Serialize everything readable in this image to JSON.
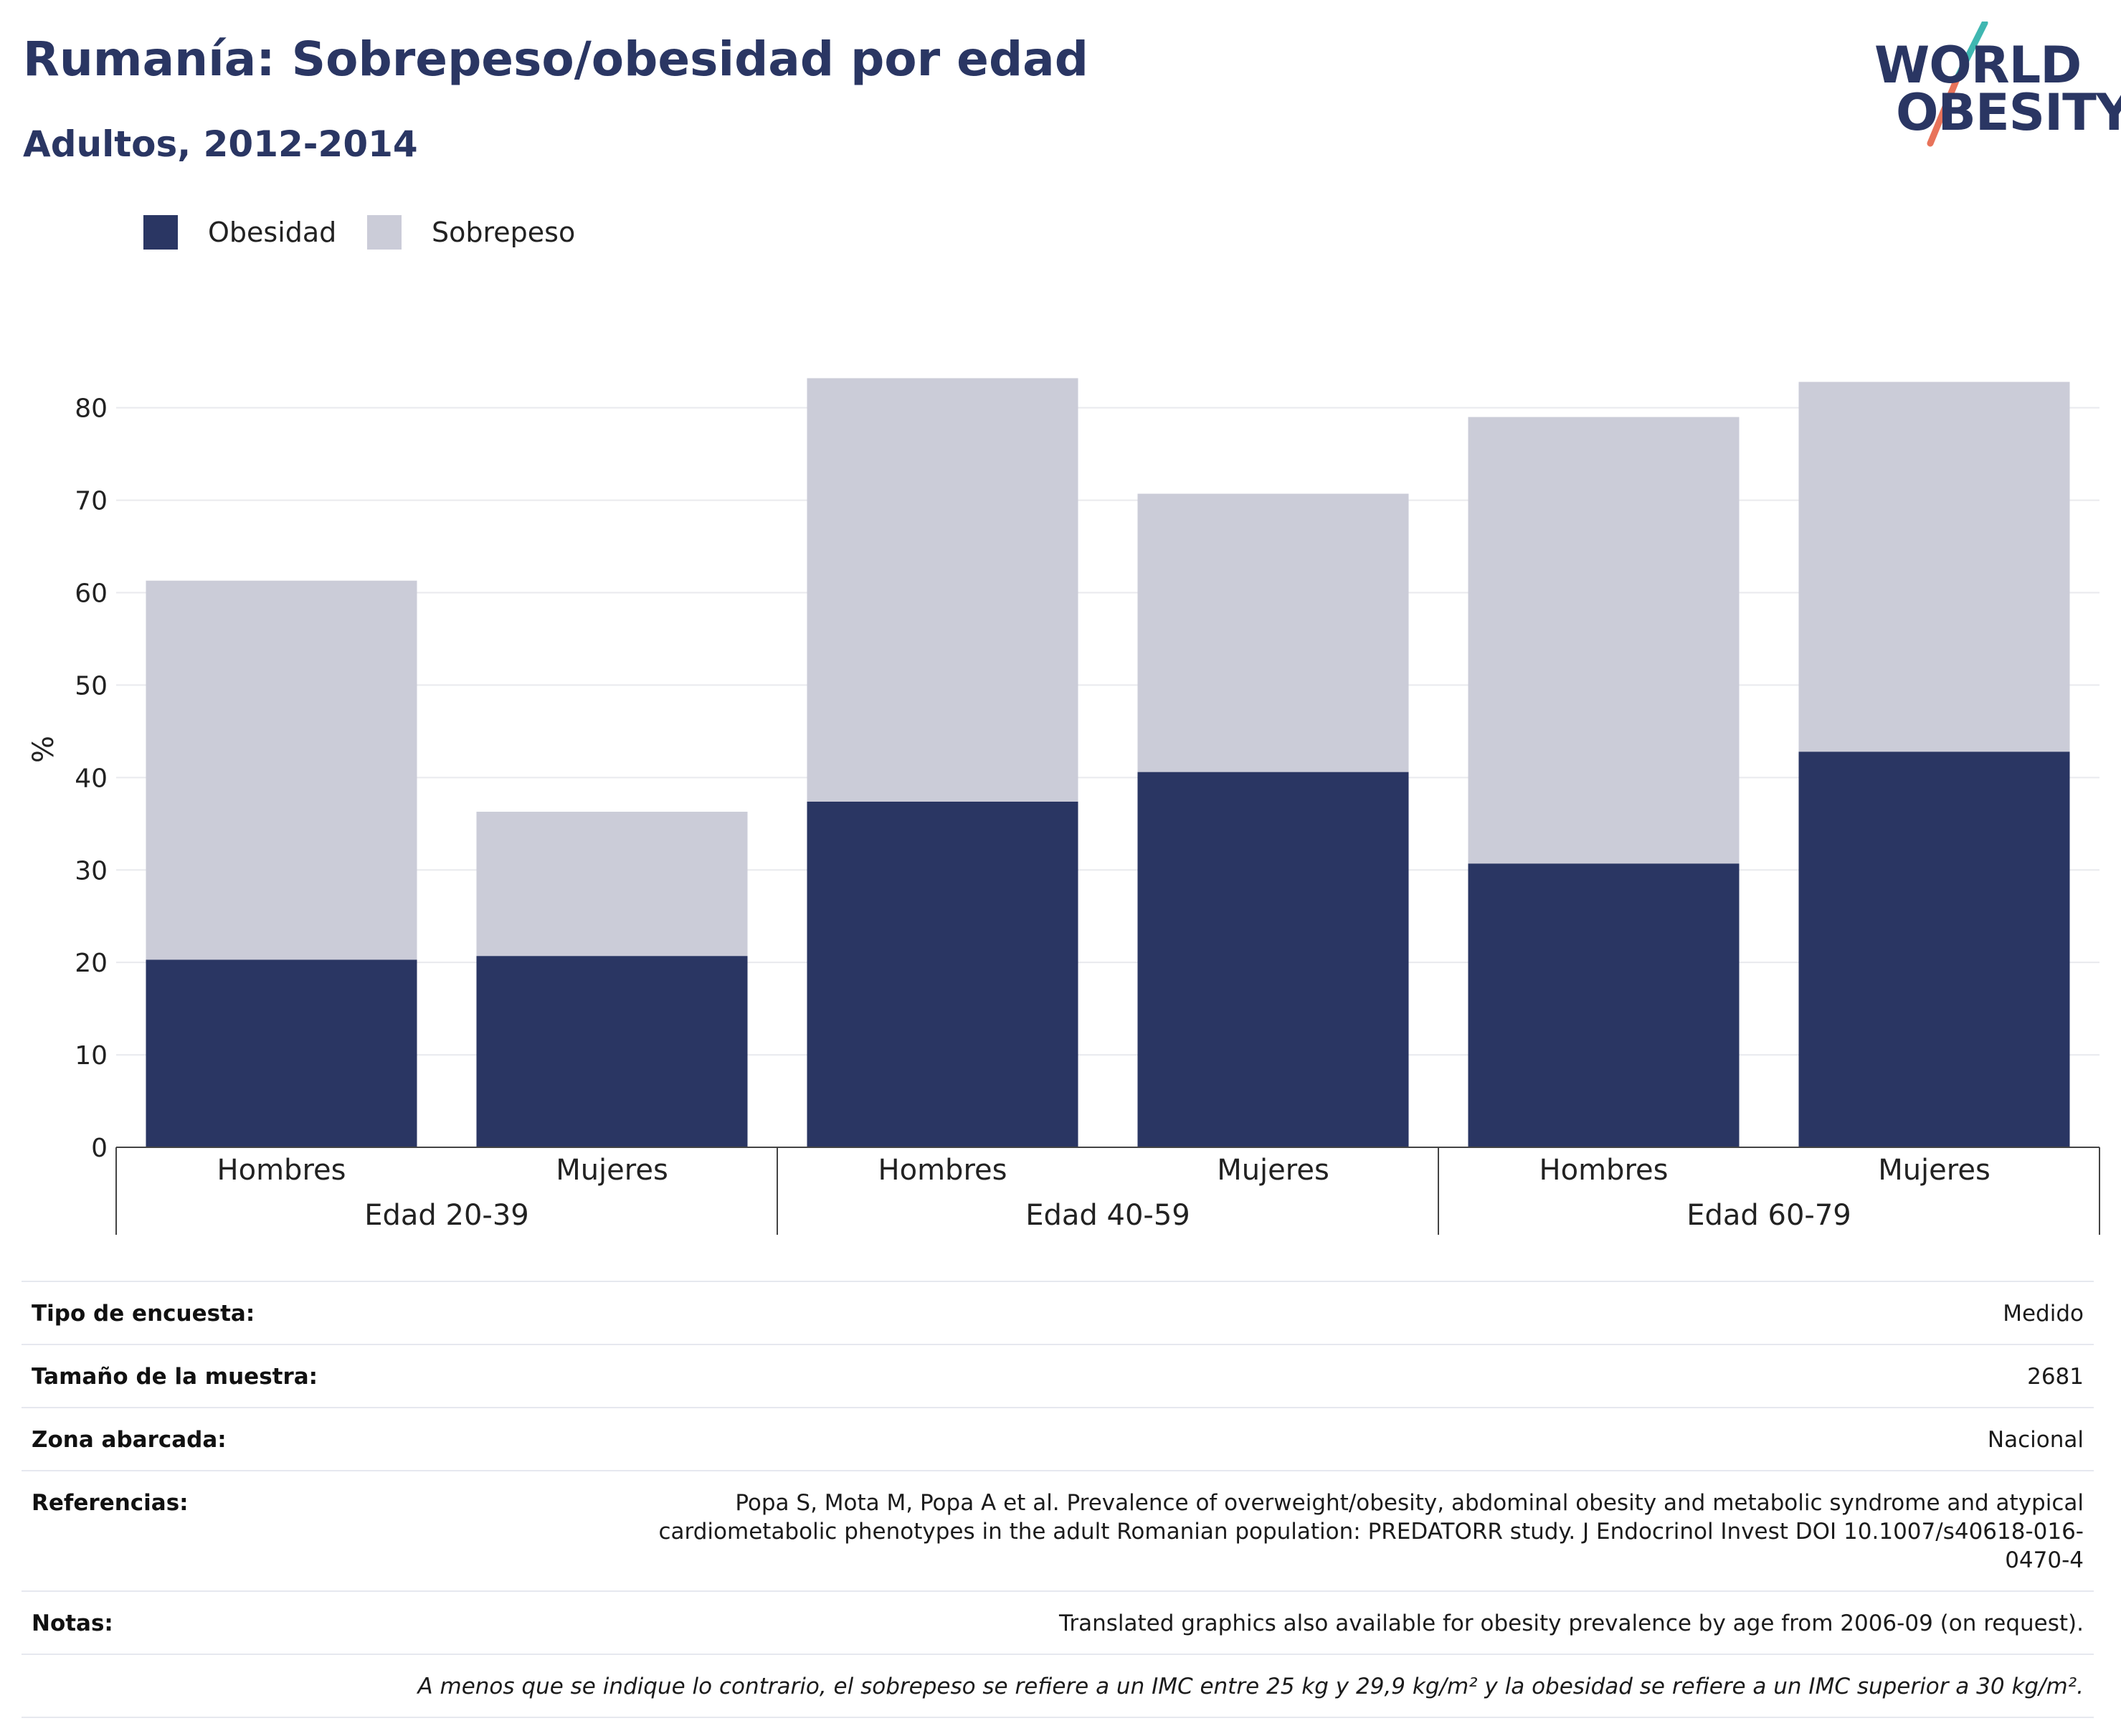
{
  "header": {
    "title": "Rumanía: Sobrepeso/obesidad por edad",
    "subtitle": "Adultos, 2012-2014"
  },
  "logo": {
    "line1": "WORLD",
    "line2": "OBESITY"
  },
  "colors": {
    "obesity": "#2a3663",
    "overweight": "#cbccd8",
    "accent_teal": "#3fb7b1",
    "accent_coral": "#e8735a"
  },
  "chart_data": {
    "type": "bar",
    "stacked": true,
    "ylabel": "%",
    "ylim": [
      0,
      83
    ],
    "yticks": [
      0,
      10,
      20,
      30,
      40,
      50,
      60,
      70,
      80
    ],
    "grid": true,
    "legend": "top-left",
    "groups": [
      "Edad 20-39",
      "Edad 40-59",
      "Edad 60-79"
    ],
    "categories": [
      "Hombres",
      "Mujeres",
      "Hombres",
      "Mujeres",
      "Hombres",
      "Mujeres"
    ],
    "series": [
      {
        "name": "Obesidad",
        "values": [
          20.3,
          20.7,
          37.4,
          40.6,
          30.7,
          42.8
        ]
      },
      {
        "name": "Sobrepeso",
        "values": [
          41.0,
          15.6,
          45.8,
          30.1,
          48.3,
          40.0
        ]
      }
    ]
  },
  "info": {
    "rows": [
      {
        "label": "Tipo de encuesta:",
        "value": "Medido"
      },
      {
        "label": "Tamaño de la muestra:",
        "value": "2681"
      },
      {
        "label": "Zona abarcada:",
        "value": "Nacional"
      },
      {
        "label": "Referencias:",
        "value": "Popa S, Mota M, Popa A et al. Prevalence of overweight/obesity, abdominal obesity and metabolic syndrome and atypical cardiometabolic phenotypes in the adult Romanian population: PREDATORR study. J Endocrinol Invest DOI 10.1007/s40618-016-0470-4"
      },
      {
        "label": "Notas:",
        "value": "Translated graphics also available for obesity prevalence by age from 2006-09 (on request)."
      }
    ],
    "footnote": "A menos que se indique lo contrario, el sobrepeso se refiere a un IMC entre 25 kg y 29,9 kg/m² y la obesidad se refiere a un IMC superior a 30 kg/m²."
  }
}
